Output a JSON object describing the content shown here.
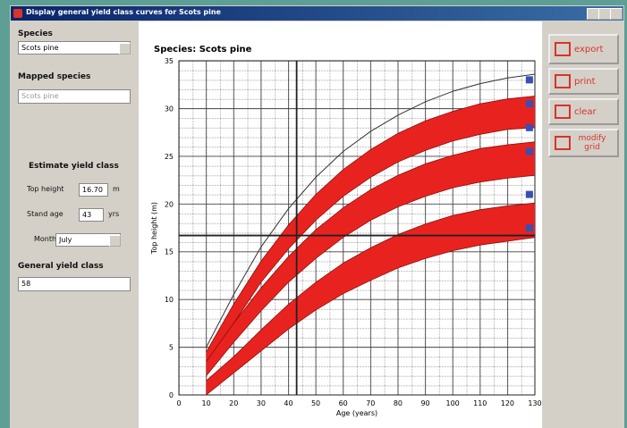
{
  "window": {
    "title": "Display general yield class curves for Scots pine"
  },
  "left_panel": {
    "species_label": "Species",
    "species_value": "Scots pine",
    "mapped_species_label": "Mapped species",
    "mapped_species_value": "Scots pine",
    "estimate_heading": "Estimate yield class",
    "top_height_label": "Top height",
    "top_height_value": "16.70",
    "top_height_unit": "m",
    "stand_age_label": "Stand age",
    "stand_age_value": "43",
    "stand_age_unit": "yrs",
    "month_label": "Month",
    "month_value": "July",
    "general_yield_label": "General yield class",
    "general_yield_value": "58"
  },
  "buttons": [
    "export",
    "print",
    "clear",
    "modify grid"
  ],
  "chart_data": {
    "type": "line",
    "title": "Species: Scots pine",
    "xlabel": "Age (years)",
    "ylabel": "Top height (m)",
    "x": [
      10,
      20,
      30,
      40,
      50,
      60,
      70,
      80,
      90,
      100,
      110,
      120,
      130
    ],
    "series": [
      {
        "color": "#333333",
        "values": [
          5,
          10.5,
          15.5,
          19.5,
          22.8,
          25.5,
          27.6,
          29.3,
          30.7,
          31.8,
          32.6,
          33.2,
          33.6
        ]
      },
      {
        "color": "#e8231f",
        "upper": [
          4.5,
          9.5,
          14,
          17.8,
          21,
          23.6,
          25.7,
          27.4,
          28.7,
          29.7,
          30.5,
          31,
          31.3
        ],
        "lower": [
          3,
          7.5,
          11.8,
          15.3,
          18.3,
          20.8,
          22.8,
          24.4,
          25.6,
          26.6,
          27.3,
          27.8,
          28
        ]
      },
      {
        "color": "#e8231f",
        "upper": [
          3.5,
          7.5,
          11.2,
          14.5,
          17.3,
          19.6,
          21.5,
          23,
          24.2,
          25.1,
          25.8,
          26.2,
          26.5
        ],
        "lower": [
          2,
          5.5,
          8.8,
          11.8,
          14.3,
          16.5,
          18.3,
          19.7,
          20.8,
          21.7,
          22.3,
          22.7,
          23
        ]
      },
      {
        "color": "#e8231f",
        "upper": [
          1.5,
          4,
          6.8,
          9.5,
          11.8,
          13.8,
          15.4,
          16.8,
          17.9,
          18.8,
          19.4,
          19.8,
          20.1
        ],
        "lower": [
          0,
          2.3,
          4.6,
          6.9,
          8.9,
          10.6,
          12,
          13.3,
          14.3,
          15.1,
          15.7,
          16.1,
          16.5
        ]
      }
    ],
    "crosshair": {
      "x": 43,
      "y": 16.7
    },
    "markers": {
      "x": 128,
      "y": [
        33,
        30.5,
        28,
        25.5,
        21,
        17.5
      ],
      "color": "#3a4fb0"
    },
    "xlim": [
      0,
      130
    ],
    "ylim": [
      0,
      35
    ],
    "xticks": [
      0,
      10,
      20,
      30,
      40,
      50,
      60,
      70,
      80,
      90,
      100,
      110,
      120,
      130
    ],
    "yticks": [
      0,
      5,
      10,
      15,
      20,
      25,
      30,
      35
    ],
    "grid": true
  }
}
